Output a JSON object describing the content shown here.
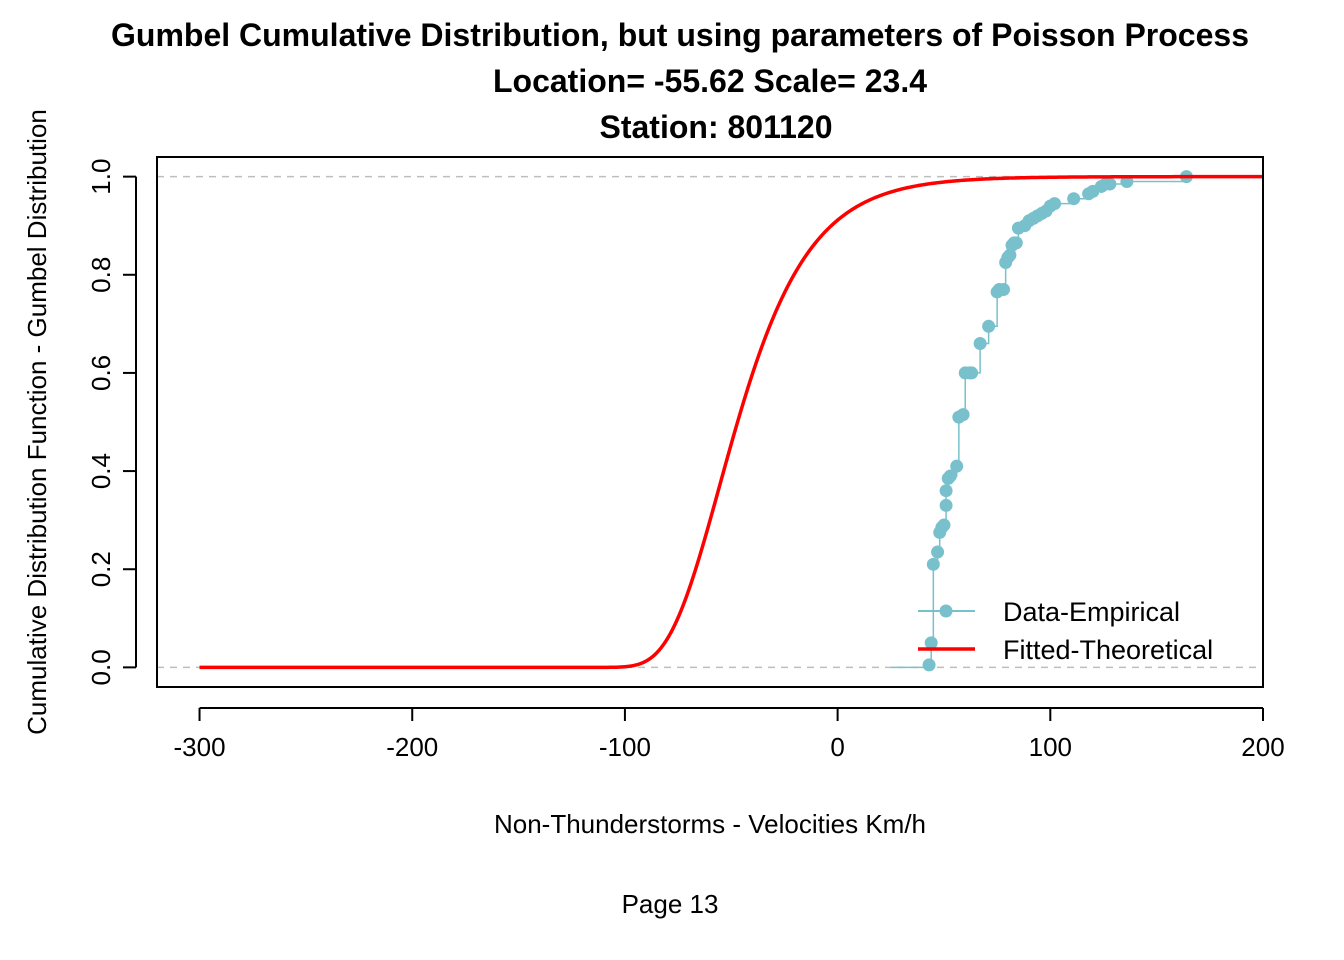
{
  "page": {
    "footer": "Page 13"
  },
  "colors": {
    "empirical": "#78C1CC",
    "theoretical": "#FF0000",
    "refline": "#BEBEBE",
    "axis": "#000000"
  },
  "chart_data": {
    "type": "line",
    "title": "Gumbel Cumulative Distribution, but using parameters of Poisson Process",
    "subtitle_1": "Location= -55.62  Scale= 23.4",
    "subtitle_2": "Station: 801120",
    "xlabel": "Non-Thunderstorms - Velocities Km/h",
    "ylabel": "Cumulative Distribution Function - Gumbel Distribution",
    "xlim": [
      -320,
      200
    ],
    "ylim": [
      -0.04,
      1.04
    ],
    "x_ticks": [
      -300,
      -200,
      -100,
      0,
      100,
      200
    ],
    "x_tick_labels": [
      "-300",
      "-200",
      "-100",
      "0",
      "100",
      "200"
    ],
    "y_ticks": [
      0.0,
      0.2,
      0.4,
      0.6,
      0.8,
      1.0
    ],
    "y_tick_labels": [
      "0.0",
      "0.2",
      "0.4",
      "0.6",
      "0.8",
      "1.0"
    ],
    "reference_lines_y": [
      0,
      1
    ],
    "legend": {
      "position": "bottom-right",
      "entries": [
        "Data-Empirical",
        "Fitted-Theoretical"
      ]
    },
    "series": [
      {
        "name": "Data-Empirical",
        "kind": "step-points",
        "x": [
          25,
          43,
          44,
          45,
          47,
          48,
          49,
          50,
          51,
          51,
          52,
          53,
          56,
          57,
          59,
          60,
          62,
          63,
          67,
          71,
          75,
          76,
          78,
          79,
          80,
          81,
          82,
          83,
          84,
          85,
          88,
          90,
          92,
          94,
          96,
          98,
          100,
          102,
          111,
          118,
          120,
          124,
          126,
          128,
          136,
          164
        ],
        "y": [
          0.0,
          0.005,
          0.05,
          0.21,
          0.235,
          0.275,
          0.285,
          0.29,
          0.33,
          0.36,
          0.385,
          0.39,
          0.41,
          0.51,
          0.515,
          0.6,
          0.6,
          0.6,
          0.66,
          0.695,
          0.765,
          0.77,
          0.77,
          0.825,
          0.835,
          0.84,
          0.86,
          0.865,
          0.865,
          0.895,
          0.9,
          0.91,
          0.915,
          0.92,
          0.925,
          0.93,
          0.94,
          0.945,
          0.955,
          0.965,
          0.97,
          0.98,
          0.985,
          0.985,
          0.99,
          1.0
        ]
      },
      {
        "name": "Fitted-Theoretical",
        "kind": "gumbel-cdf",
        "location": -55.62,
        "scale": 23.4,
        "x_range": [
          -300,
          200
        ]
      }
    ]
  }
}
